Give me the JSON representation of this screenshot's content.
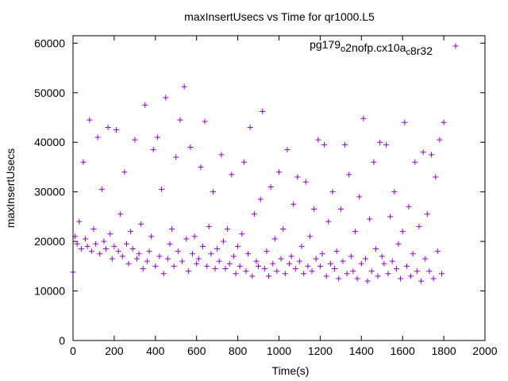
{
  "chart_data": {
    "type": "scatter",
    "title": "maxInsertUsecs vs Time for qr1000.L5",
    "xlabel": "Time(s)",
    "ylabel": "maxInsertUsecs",
    "xlim": [
      0,
      2000
    ],
    "ylim": [
      0,
      61500
    ],
    "xticks": [
      0,
      200,
      400,
      600,
      800,
      1000,
      1200,
      1400,
      1600,
      1800,
      2000
    ],
    "yticks": [
      0,
      10000,
      20000,
      30000,
      40000,
      50000,
      60000
    ],
    "grid": false,
    "legend_position": "top-right",
    "series": [
      {
        "name": "pg179_o2nofp.cx10a_c8r32",
        "color": "#9400d3",
        "marker": "plus",
        "x_start": 0,
        "x_step": 10,
        "y": [
          13800,
          21000,
          19500,
          24000,
          18500,
          36000,
          20500,
          19000,
          44500,
          18000,
          22500,
          19500,
          41000,
          17500,
          30500,
          20000,
          18500,
          43000,
          21500,
          16500,
          19000,
          42500,
          18000,
          25500,
          17000,
          34000,
          19500,
          15500,
          22000,
          18500,
          40500,
          16500,
          17500,
          23500,
          14500,
          47500,
          16000,
          18000,
          21000,
          38500,
          15000,
          41000,
          17000,
          30500,
          13500,
          49000,
          16500,
          19500,
          22500,
          15000,
          37000,
          18000,
          44500,
          16000,
          51200,
          20500,
          14000,
          39000,
          17500,
          21000,
          15500,
          16500,
          35000,
          19000,
          44200,
          15000,
          23000,
          17500,
          30000,
          14500,
          18500,
          16000,
          37500,
          20000,
          14500,
          22500,
          15500,
          33500,
          17000,
          13500,
          19000,
          15000,
          21500,
          36000,
          14000,
          17500,
          43000,
          13000,
          25500,
          16000,
          15000,
          28500,
          46200,
          14500,
          18000,
          13000,
          31000,
          15500,
          20500,
          14000,
          34000,
          16500,
          22500,
          13500,
          38500,
          15500,
          17000,
          27500,
          14500,
          33000,
          16000,
          19000,
          13500,
          32000,
          15000,
          21000,
          14000,
          26500,
          16500,
          40500,
          15000,
          17500,
          39500,
          13000,
          24000,
          15500,
          30000,
          14500,
          18000,
          12500,
          26500,
          16000,
          39500,
          13500,
          33500,
          17000,
          14000,
          22000,
          12500,
          29000,
          15500,
          44800,
          16500,
          12000,
          24500,
          14000,
          36000,
          18500,
          13000,
          40000,
          17000,
          15500,
          39500,
          13500,
          25000,
          16000,
          30000,
          14500,
          19500,
          12500,
          22000,
          44000,
          15000,
          27000,
          13000,
          17500,
          36000,
          14000,
          23000,
          12000,
          38000,
          16500,
          25500,
          14000,
          37500,
          12500,
          33000,
          18000,
          40500,
          13500,
          44000
        ]
      }
    ]
  }
}
